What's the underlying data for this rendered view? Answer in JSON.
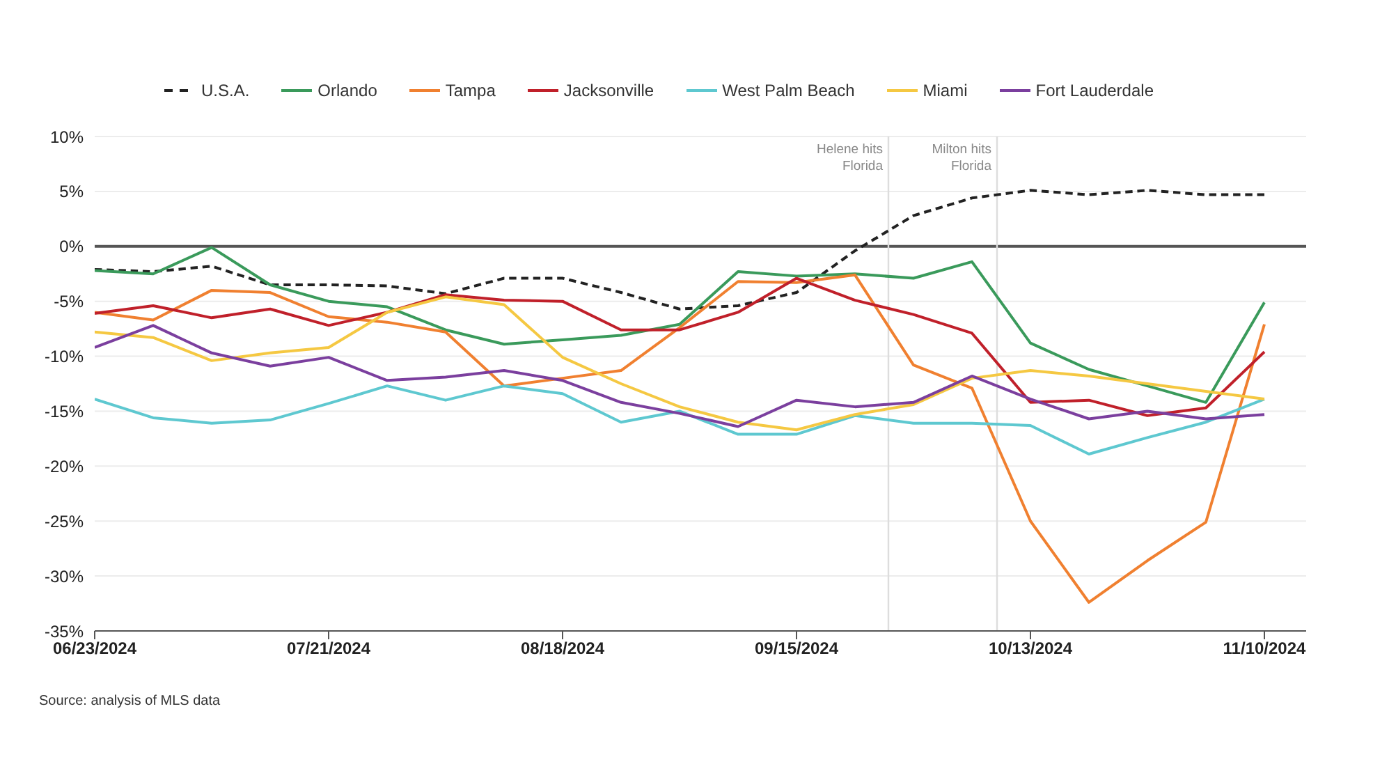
{
  "chart_data": {
    "type": "line",
    "x": [
      "2024-06-23",
      "2024-06-30",
      "2024-07-07",
      "2024-07-14",
      "2024-07-21",
      "2024-07-28",
      "2024-08-04",
      "2024-08-11",
      "2024-08-18",
      "2024-08-25",
      "2024-09-01",
      "2024-09-08",
      "2024-09-15",
      "2024-09-22",
      "2024-09-29",
      "2024-10-06",
      "2024-10-13",
      "2024-10-20",
      "2024-10-27",
      "2024-11-03",
      "2024-11-10"
    ],
    "series": [
      {
        "name": "U.S.A.",
        "color": "#222222",
        "line_style": "dashed",
        "values": [
          -2.1,
          -2.3,
          -1.8,
          -3.5,
          -3.5,
          -3.6,
          -4.3,
          -2.9,
          -2.9,
          -4.2,
          -5.7,
          -5.4,
          -4.2,
          -0.4,
          2.8,
          4.4,
          5.1,
          4.7,
          5.1,
          4.7,
          4.7
        ]
      },
      {
        "name": "Orlando",
        "color": "#3a9a5b",
        "values": [
          -2.2,
          -2.5,
          -0.1,
          -3.5,
          -5.0,
          -5.5,
          -7.6,
          -8.9,
          -8.5,
          -8.1,
          -7.1,
          -2.3,
          -2.7,
          -2.5,
          -2.9,
          -1.4,
          -8.8,
          -11.2,
          -12.7,
          -14.2,
          -5.1
        ]
      },
      {
        "name": "Tampa",
        "color": "#f08030",
        "values": [
          -6.0,
          -6.7,
          -4.0,
          -4.2,
          -6.4,
          -6.9,
          -7.8,
          -12.7,
          -12.0,
          -11.3,
          -7.4,
          -3.2,
          -3.3,
          -2.6,
          -10.8,
          -12.9,
          -25.0,
          -32.4,
          -28.6,
          -25.1,
          -7.1
        ]
      },
      {
        "name": "Jacksonville",
        "color": "#c0202a",
        "values": [
          -6.1,
          -5.4,
          -6.5,
          -5.7,
          -7.2,
          -6.0,
          -4.4,
          -4.9,
          -5.0,
          -7.6,
          -7.6,
          -6.0,
          -2.9,
          -4.9,
          -6.2,
          -7.9,
          -14.2,
          -14.0,
          -15.4,
          -14.7,
          -9.6
        ]
      },
      {
        "name": "West Palm Beach",
        "color": "#5ec8d0",
        "values": [
          -13.9,
          -15.6,
          -16.1,
          -15.8,
          -14.3,
          -12.7,
          -14.0,
          -12.7,
          -13.4,
          -16.0,
          -15.0,
          -17.1,
          -17.1,
          -15.4,
          -16.1,
          -16.1,
          -16.3,
          -18.9,
          -17.4,
          -16.0,
          -13.9
        ]
      },
      {
        "name": "Miami",
        "color": "#f5c842",
        "values": [
          -7.8,
          -8.3,
          -10.4,
          -9.7,
          -9.2,
          -6.0,
          -4.6,
          -5.3,
          -10.1,
          -12.5,
          -14.6,
          -16.0,
          -16.7,
          -15.3,
          -14.4,
          -12.0,
          -11.3,
          -11.8,
          -12.5,
          -13.2,
          -13.9
        ]
      },
      {
        "name": "Fort Lauderdale",
        "color": "#7b3f9e",
        "values": [
          -9.2,
          -7.2,
          -9.7,
          -10.9,
          -10.1,
          -12.2,
          -11.9,
          -11.3,
          -12.2,
          -14.2,
          -15.2,
          -16.4,
          -14.0,
          -14.6,
          -14.2,
          -11.8,
          -13.9,
          -15.7,
          -15.0,
          -15.7,
          -15.3
        ]
      }
    ],
    "xlim": [
      "2024-06-23",
      "2024-11-15"
    ],
    "xticks": [
      {
        "value": "2024-06-23",
        "label": "06/23/2024"
      },
      {
        "value": "2024-07-21",
        "label": "07/21/2024"
      },
      {
        "value": "2024-08-18",
        "label": "08/18/2024"
      },
      {
        "value": "2024-09-15",
        "label": "09/15/2024"
      },
      {
        "value": "2024-10-13",
        "label": "10/13/2024"
      },
      {
        "value": "2024-11-10",
        "label": "11/10/2024"
      }
    ],
    "ylim": [
      -35,
      10
    ],
    "yticks": [
      {
        "value": -35,
        "label": "-35%"
      },
      {
        "value": -30,
        "label": "-30%"
      },
      {
        "value": -25,
        "label": "-25%"
      },
      {
        "value": -20,
        "label": "-20%"
      },
      {
        "value": -15,
        "label": "-15%"
      },
      {
        "value": -10,
        "label": "-10%"
      },
      {
        "value": -5,
        "label": "-5%"
      },
      {
        "value": 0,
        "label": "0%"
      },
      {
        "value": 5,
        "label": "5%"
      },
      {
        "value": 10,
        "label": "10%"
      }
    ],
    "ref_lines": [
      {
        "axis": "y",
        "value": 0,
        "color": "#555555"
      },
      {
        "axis": "x",
        "value": "2024-09-26",
        "label": "Helene hits Florida",
        "color": "#dddddd"
      },
      {
        "axis": "x",
        "value": "2024-10-09",
        "label": "Milton hits Florida",
        "color": "#dddddd"
      }
    ],
    "annotations": [
      "Source: analysis of MLS data"
    ],
    "grid": "y",
    "legend": "top",
    "marker": "none",
    "line_style": "solid"
  }
}
